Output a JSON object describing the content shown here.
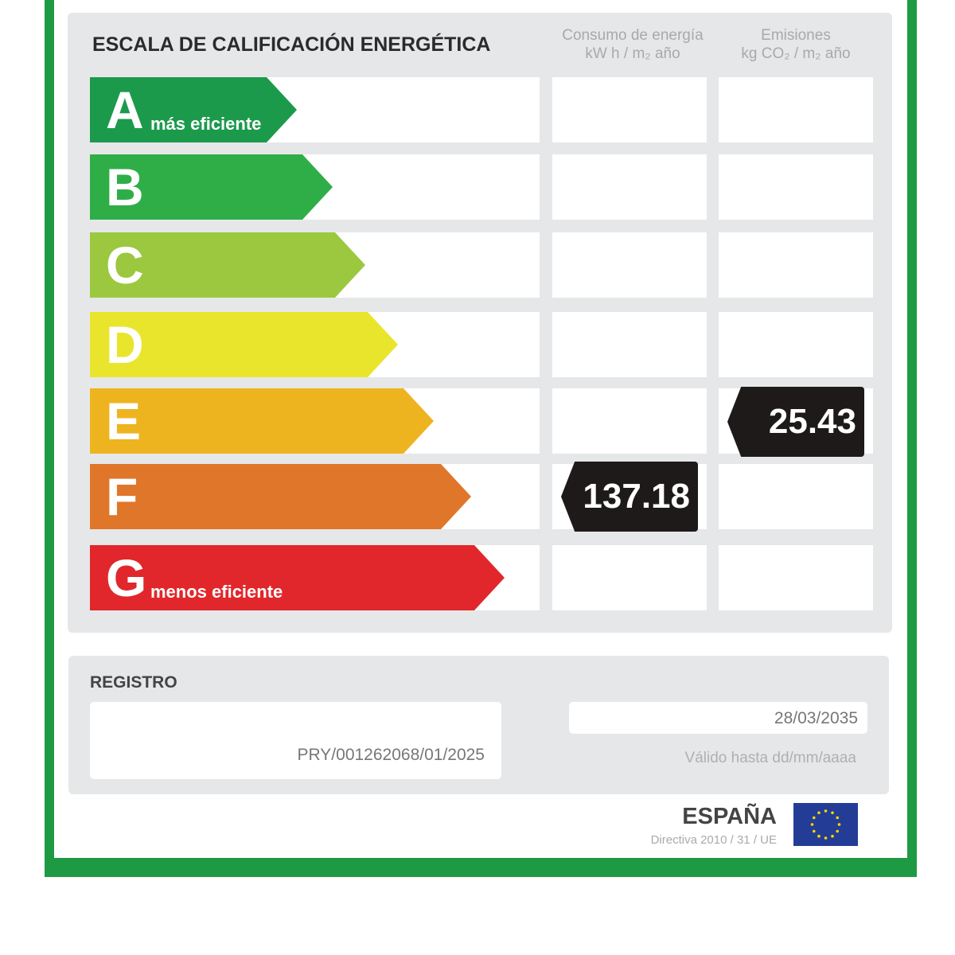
{
  "title": "ESCALA DE CALIFICACIÓN ENERGÉTICA",
  "columns": {
    "energy": {
      "line1": "Consumo de energía",
      "line2": "kW h / m₂ año"
    },
    "emissions": {
      "line1": "Emisiones",
      "line2": "kg CO₂ / m₂ año"
    }
  },
  "classes": [
    {
      "letter": "A",
      "sub": "más eficiente",
      "color": "#1c9a4c"
    },
    {
      "letter": "B",
      "sub": "",
      "color": "#2fae48"
    },
    {
      "letter": "C",
      "sub": "",
      "color": "#9bc83f"
    },
    {
      "letter": "D",
      "sub": "",
      "color": "#e9e52c"
    },
    {
      "letter": "E",
      "sub": "",
      "color": "#eeb420"
    },
    {
      "letter": "F",
      "sub": "",
      "color": "#e0762a"
    },
    {
      "letter": "G",
      "sub": "menos eficiente",
      "color": "#e1272b"
    }
  ],
  "ratings": {
    "energy": {
      "class": "F",
      "value": "137.18"
    },
    "emissions": {
      "class": "E",
      "value": "25.43"
    }
  },
  "registro": {
    "label": "REGISTRO",
    "number": "PRY/001262068/01/2025",
    "valid_date": "28/03/2035",
    "valid_label": "Válido hasta dd/mm/aaaa"
  },
  "footer": {
    "country": "ESPAÑA",
    "directive": "Directiva 2010 / 31 / UE"
  }
}
